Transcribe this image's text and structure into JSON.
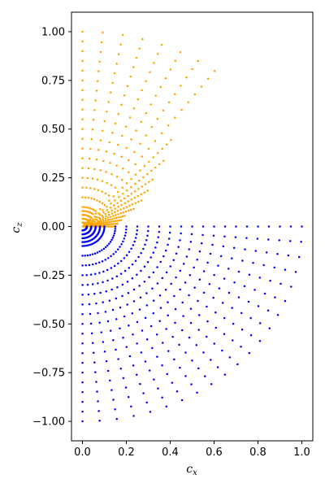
{
  "chart_data": {
    "type": "scatter",
    "title": "",
    "xlabel_main": "c",
    "xlabel_sub": "x",
    "ylabel_main": "c",
    "ylabel_sub": "z",
    "xlim": [
      -0.05,
      1.05
    ],
    "ylim": [
      -1.1,
      1.1
    ],
    "xticks": [
      0.0,
      0.2,
      0.4,
      0.6,
      0.8,
      1.0
    ],
    "xtick_labels": [
      "0.0",
      "0.2",
      "0.4",
      "0.6",
      "0.8",
      "1.0"
    ],
    "yticks": [
      -1.0,
      -0.75,
      -0.5,
      -0.25,
      0.0,
      0.25,
      0.5,
      0.75,
      1.0
    ],
    "ytick_labels": [
      "−1.00",
      "−0.75",
      "−0.50",
      "−0.25",
      "0.00",
      "0.25",
      "0.50",
      "0.75",
      "1.00"
    ],
    "grid": false,
    "legend": "none",
    "colors": {
      "upper": "#FFA500",
      "lower": "#0000FF"
    },
    "series": [
      {
        "color_key": "upper",
        "pattern": "radial rays, theta 90 to 0 deg",
        "theta_deg_start": 90,
        "theta_deg_end": 0,
        "rays": 18,
        "radii_scaled": [
          1.0,
          0.95,
          0.9,
          0.85,
          0.8,
          0.75,
          0.7,
          0.65,
          0.6,
          0.55,
          0.5,
          0.45,
          0.4,
          0.35,
          0.3,
          0.25,
          0.2,
          0.15,
          0.1,
          0.08,
          0.06,
          0.04,
          0.02
        ],
        "max_radius_by_ray": [
          1.0,
          1.0,
          1.0,
          1.0,
          1.0,
          1.0,
          1.0,
          1.0,
          0.6,
          0.5,
          0.4,
          0.35,
          0.3,
          0.25,
          0.2,
          0.18,
          0.16,
          0.15
        ]
      },
      {
        "color_key": "lower",
        "pattern": "radial rays, theta 0 to -90 deg",
        "theta_deg_start": 0,
        "theta_deg_end": -90,
        "rays": 21,
        "radii_scaled": [
          1.0,
          0.95,
          0.9,
          0.85,
          0.8,
          0.75,
          0.7,
          0.65,
          0.6,
          0.55,
          0.5,
          0.45,
          0.4,
          0.35,
          0.3,
          0.25,
          0.2,
          0.15,
          0.1,
          0.08,
          0.06,
          0.04,
          0.02
        ],
        "max_radius_by_ray": [
          1.0,
          1.0,
          1.0,
          1.0,
          1.0,
          1.0,
          1.0,
          1.0,
          1.0,
          1.0,
          1.0,
          1.0,
          1.0,
          1.0,
          1.0,
          1.0,
          1.0,
          1.0,
          1.0,
          1.0,
          1.0
        ]
      }
    ]
  }
}
